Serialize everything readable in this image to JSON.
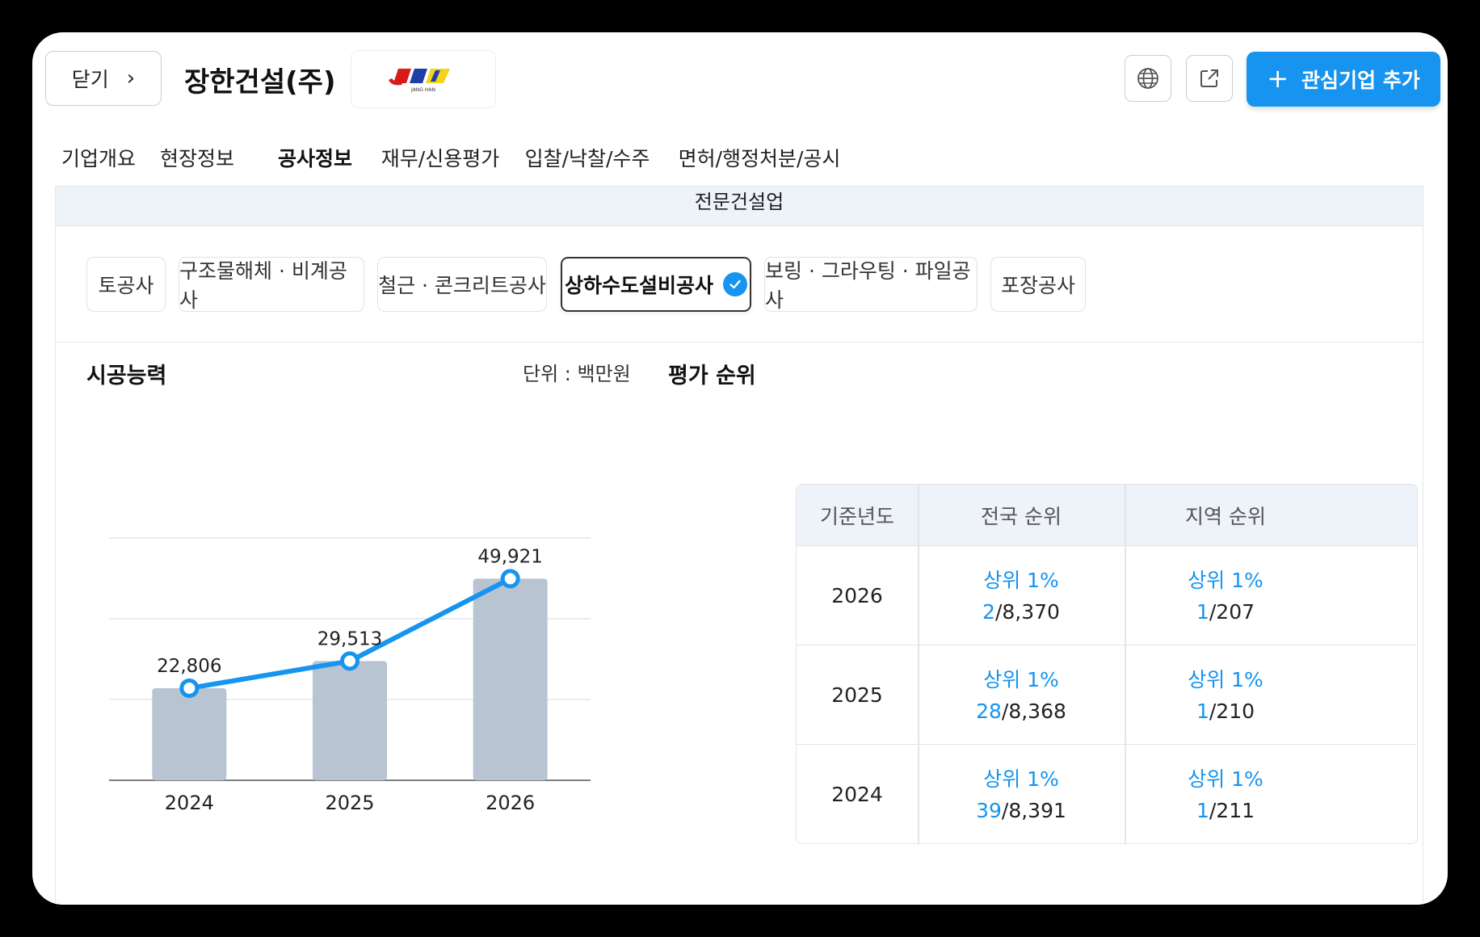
{
  "header": {
    "close_label": "닫기",
    "close_chevron": "›",
    "company_name": "장한건설(주)",
    "logo_letters": "JANG HAN",
    "add_button_label": "관심기업 추가",
    "add_button_plus": "+"
  },
  "tabs": [
    {
      "label": "기업개요",
      "active": false
    },
    {
      "label": "현장정보",
      "active": false
    },
    {
      "label": "공사정보",
      "active": true
    },
    {
      "label": "재무/신용평가",
      "active": false
    },
    {
      "label": "입찰/낙찰/수주",
      "active": false
    },
    {
      "label": "면허/행정처분/공시",
      "active": false
    }
  ],
  "panel": {
    "header_title": "전문건설업",
    "chips": [
      {
        "label": "토공사",
        "selected": false
      },
      {
        "label": "구조물해체 · 비계공사",
        "selected": false
      },
      {
        "label": "철근 · 콘크리트공사",
        "selected": false
      },
      {
        "label": "상하수도설비공사",
        "selected": true
      },
      {
        "label": "보링 · 그라우팅 · 파일공사",
        "selected": false
      },
      {
        "label": "포장공사",
        "selected": false
      }
    ]
  },
  "capacity": {
    "title": "시공능력",
    "unit": "단위 : 백만원"
  },
  "chart_data": {
    "type": "bar",
    "categories": [
      "2024",
      "2025",
      "2026"
    ],
    "values": [
      22806,
      29513,
      49921
    ],
    "value_labels": [
      "22,806",
      "29,513",
      "49,921"
    ],
    "ylim": [
      0,
      60000
    ],
    "grid": true,
    "line_overlay": true,
    "colors": {
      "bar": "#b8c4d2",
      "line": "#1694ef"
    }
  },
  "ranking": {
    "title": "평가 순위",
    "headers": [
      "기준년도",
      "전국 순위",
      "지역 순위"
    ],
    "rows": [
      {
        "year": "2026",
        "national_pct": "상위 1%",
        "national_rank": "2",
        "national_total": "/8,370",
        "regional_pct": "상위 1%",
        "regional_rank": "1",
        "regional_total": "/207"
      },
      {
        "year": "2025",
        "national_pct": "상위 1%",
        "national_rank": "28",
        "national_total": "/8,368",
        "regional_pct": "상위 1%",
        "regional_rank": "1",
        "regional_total": "/210"
      },
      {
        "year": "2024",
        "national_pct": "상위 1%",
        "national_rank": "39",
        "national_total": "/8,391",
        "regional_pct": "상위 1%",
        "regional_rank": "1",
        "regional_total": "/211"
      }
    ]
  },
  "icons": [
    "chevron-right-icon",
    "globe-icon",
    "share-icon",
    "plus-icon",
    "check-icon"
  ],
  "colors": {
    "accent": "#1694ef",
    "panel_header_bg": "#eef2f9"
  }
}
